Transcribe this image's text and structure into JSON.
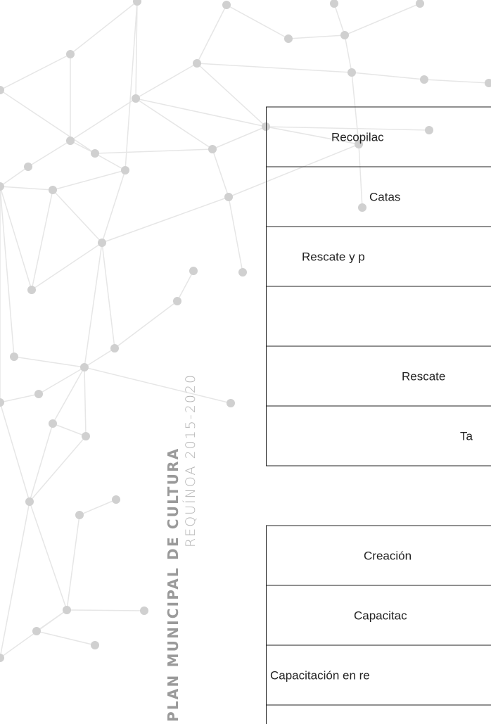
{
  "header": {
    "title": "PLAN MUNICIPAL DE CULTURA",
    "subtitle": "REQUÍNOA 2015-2020"
  },
  "tables": [
    {
      "rows": [
        "Recopilac",
        "Catas",
        "Rescate y p",
        "Rescate",
        "Ta"
      ]
    },
    {
      "rows": [
        "Creación",
        "Capacitac",
        "Capacitación en re"
      ]
    }
  ]
}
